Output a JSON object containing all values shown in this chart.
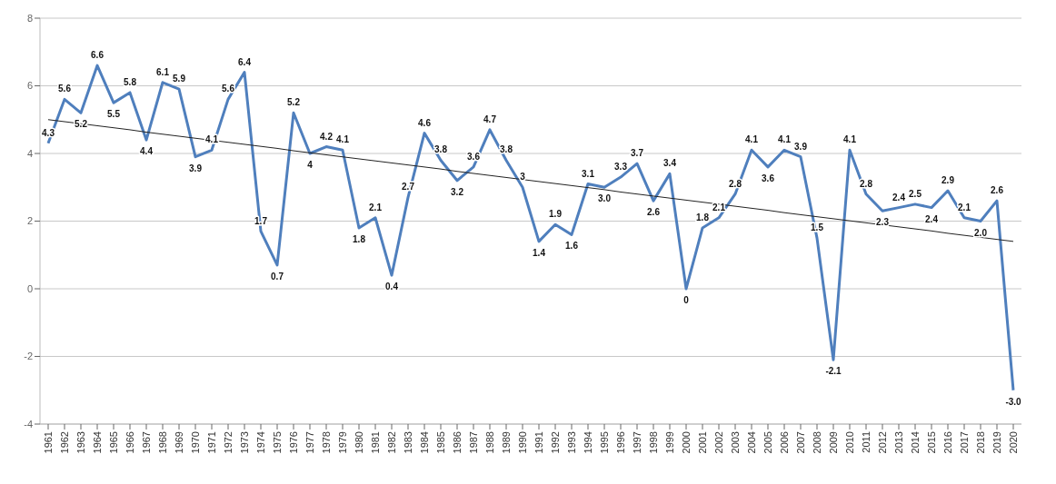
{
  "chart_data": {
    "type": "line",
    "categories": [
      "1961",
      "1962",
      "1963",
      "1964",
      "1965",
      "1966",
      "1967",
      "1968",
      "1969",
      "1970",
      "1971",
      "1972",
      "1973",
      "1974",
      "1975",
      "1976",
      "1977",
      "1978",
      "1979",
      "1980",
      "1981",
      "1982",
      "1983",
      "1984",
      "1985",
      "1986",
      "1987",
      "1988",
      "1989",
      "1990",
      "1991",
      "1992",
      "1993",
      "1994",
      "1995",
      "1996",
      "1997",
      "1998",
      "1999",
      "2000",
      "2001",
      "2002",
      "2003",
      "2004",
      "2005",
      "2006",
      "2007",
      "2008",
      "2009",
      "2010",
      "2011",
      "2012",
      "2013",
      "2014",
      "2015",
      "2016",
      "2017",
      "2018",
      "2019",
      "2020"
    ],
    "series": [
      {
        "color": "#4f7fbd",
        "values": [
          4.3,
          5.6,
          5.2,
          6.6,
          5.5,
          5.8,
          4.4,
          6.1,
          5.9,
          3.9,
          4.1,
          5.6,
          6.4,
          1.7,
          0.7,
          5.2,
          4,
          4.2,
          4.1,
          1.8,
          2.1,
          0.4,
          2.7,
          4.6,
          3.8,
          3.2,
          3.6,
          4.7,
          3.8,
          3,
          1.4,
          1.9,
          1.6,
          3.1,
          3.0,
          3.3,
          3.7,
          2.6,
          3.4,
          0,
          1.8,
          2.1,
          2.8,
          4.1,
          3.6,
          4.1,
          3.9,
          1.5,
          -2.1,
          4.1,
          2.8,
          2.3,
          2.4,
          2.5,
          2.4,
          2.9,
          2.1,
          2.0,
          2.6,
          -3.0
        ],
        "value_labels": [
          "4.3",
          "5.6",
          "5.2",
          "6.6",
          "5.5",
          "5.8",
          "4.4",
          "6.1",
          "5.9",
          "3.9",
          "4.1",
          "5.6",
          "6.4",
          "1.7",
          "0.7",
          "5.2",
          "4",
          "4.2",
          "4.1",
          "1.8",
          "2.1",
          "0.4",
          "2.7",
          "4.6",
          "3.8",
          "3.2",
          "3.6",
          "4.7",
          "3.8",
          "3",
          "1.4",
          "1.9",
          "1.6",
          "3.1",
          "3.0",
          "3.3",
          "3.7",
          "2.6",
          "3.4",
          "0",
          "1.8",
          "2.1",
          "2.8",
          "4.1",
          "3.6",
          "4.1",
          "3.9",
          "1.5",
          "-2.1",
          "4.1",
          "2.8",
          "2.3",
          "2.4",
          "2.5",
          "2.4",
          "2.9",
          "2.1",
          "2.0",
          "2.6",
          "-3.0"
        ]
      },
      {
        "type": "line",
        "color": "#222222",
        "values": [
          5.0,
          4.94,
          4.88,
          4.82,
          4.76,
          4.7,
          4.63,
          4.57,
          4.51,
          4.45,
          4.39,
          4.33,
          4.27,
          4.21,
          4.15,
          4.08,
          4.02,
          3.96,
          3.9,
          3.84,
          3.78,
          3.72,
          3.66,
          3.6,
          3.54,
          3.47,
          3.41,
          3.35,
          3.29,
          3.23,
          3.17,
          3.11,
          3.05,
          2.99,
          2.93,
          2.86,
          2.8,
          2.74,
          2.68,
          2.62,
          2.56,
          2.5,
          2.44,
          2.38,
          2.32,
          2.25,
          2.19,
          2.13,
          2.07,
          2.01,
          1.95,
          1.89,
          1.83,
          1.77,
          1.71,
          1.64,
          1.58,
          1.52,
          1.46,
          1.4
        ]
      }
    ],
    "ylim": [
      -4,
      8
    ],
    "yticks": [
      -4,
      -2,
      0,
      2,
      4,
      6,
      8
    ],
    "grid": "y",
    "legend": false,
    "marker": "none"
  }
}
